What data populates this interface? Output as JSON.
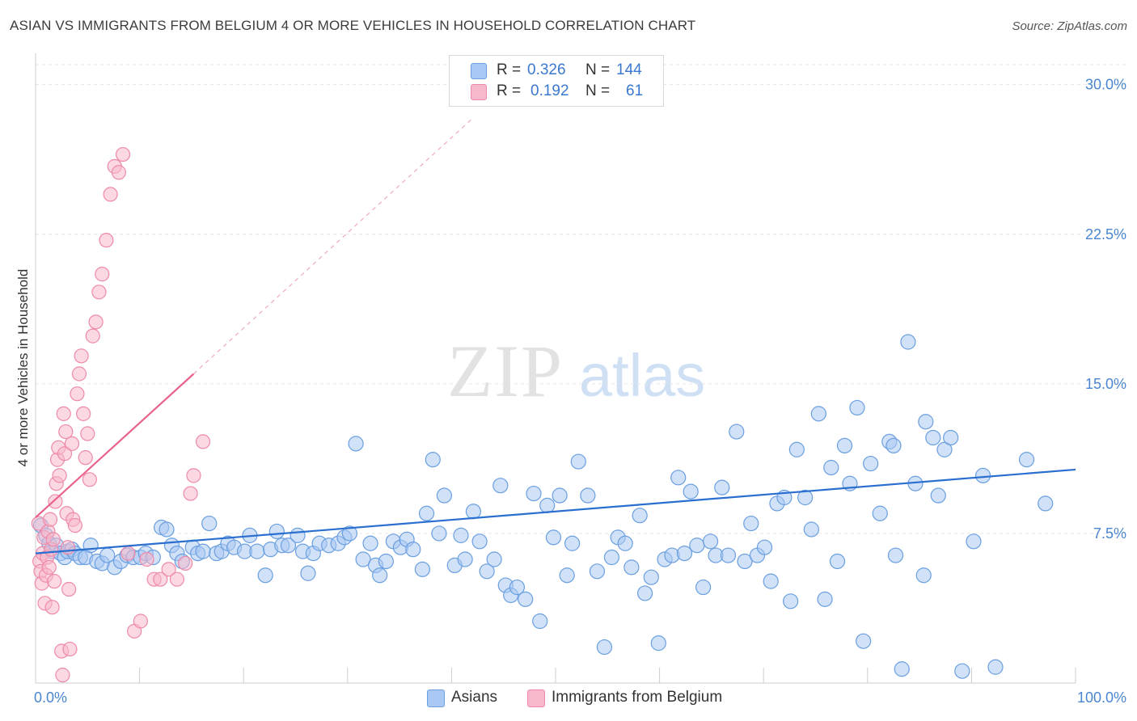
{
  "title": "ASIAN VS IMMIGRANTS FROM BELGIUM 4 OR MORE VEHICLES IN HOUSEHOLD CORRELATION CHART",
  "source": "Source: ZipAtlas.com",
  "watermark": {
    "zip": "ZIP",
    "atlas": "atlas"
  },
  "legend": {
    "r_label": "R =",
    "n_label": "N =",
    "asians": {
      "r": "0.326",
      "n": "144"
    },
    "belgium": {
      "r": "0.192",
      "n": "61"
    }
  },
  "bottom_legend": {
    "asians": "Asians",
    "belgium": "Immigrants from Belgium"
  },
  "colors": {
    "asian_fill": "#a9c8f3",
    "asian_stroke": "#6a9fe0",
    "asian_line": "#2a6fd0",
    "belgium_fill": "#f7b8cb",
    "belgium_stroke": "#ee8aa8",
    "belgium_line": "#e8628a",
    "grid": "#e6e6e6",
    "tick_text": "#4a86d0"
  },
  "chart_data": {
    "type": "scatter",
    "title": "ASIAN VS IMMIGRANTS FROM BELGIUM 4 OR MORE VEHICLES IN HOUSEHOLD CORRELATION CHART",
    "xlabel": "",
    "ylabel": "4 or more Vehicles in Household",
    "xlim": [
      0,
      100
    ],
    "ylim": [
      0,
      31
    ],
    "x_tick_labels": [
      "0.0%",
      "100.0%"
    ],
    "y_ticks": [
      7.5,
      15.0,
      22.5,
      30.0
    ],
    "y_tick_labels": [
      "7.5%",
      "15.0%",
      "22.5%",
      "30.0%"
    ],
    "grid": true,
    "series": [
      {
        "name": "Asians",
        "r": 0.326,
        "n": 144,
        "trend": {
          "x0": 0,
          "y0": 6.5,
          "x1": 100,
          "y1": 10.7
        },
        "points": [
          [
            0.5,
            7.9
          ],
          [
            1,
            7.4
          ],
          [
            1.3,
            7.0
          ],
          [
            1.6,
            6.6
          ],
          [
            2,
            6.9
          ],
          [
            2.4,
            6.5
          ],
          [
            2.8,
            6.3
          ],
          [
            3.1,
            6.6
          ],
          [
            3.5,
            6.7
          ],
          [
            3.8,
            6.5
          ],
          [
            4.3,
            6.3
          ],
          [
            4.8,
            6.3
          ],
          [
            5.3,
            6.9
          ],
          [
            5.9,
            6.1
          ],
          [
            6.4,
            6.0
          ],
          [
            6.9,
            6.4
          ],
          [
            7.6,
            5.8
          ],
          [
            8.2,
            6.1
          ],
          [
            8.8,
            6.4
          ],
          [
            9.4,
            6.3
          ],
          [
            10.1,
            6.3
          ],
          [
            10.6,
            6.5
          ],
          [
            11.3,
            6.3
          ],
          [
            12.1,
            7.8
          ],
          [
            12.6,
            7.7
          ],
          [
            13.1,
            6.9
          ],
          [
            13.6,
            6.5
          ],
          [
            14.1,
            6.1
          ],
          [
            15.1,
            6.8
          ],
          [
            15.6,
            6.5
          ],
          [
            16.1,
            6.6
          ],
          [
            16.7,
            8.0
          ],
          [
            17.4,
            6.5
          ],
          [
            17.9,
            6.6
          ],
          [
            18.5,
            7.0
          ],
          [
            19.1,
            6.8
          ],
          [
            20.1,
            6.6
          ],
          [
            20.6,
            7.4
          ],
          [
            21.3,
            6.6
          ],
          [
            22.1,
            5.4
          ],
          [
            22.6,
            6.7
          ],
          [
            23.2,
            7.6
          ],
          [
            23.7,
            6.9
          ],
          [
            24.3,
            6.9
          ],
          [
            25.2,
            7.4
          ],
          [
            25.7,
            6.6
          ],
          [
            26.2,
            5.5
          ],
          [
            26.7,
            6.5
          ],
          [
            27.3,
            7.0
          ],
          [
            28.2,
            6.9
          ],
          [
            29.1,
            7.0
          ],
          [
            29.7,
            7.3
          ],
          [
            30.2,
            7.5
          ],
          [
            30.8,
            12.0
          ],
          [
            31.5,
            6.2
          ],
          [
            32.2,
            7.0
          ],
          [
            32.7,
            5.9
          ],
          [
            33.1,
            5.4
          ],
          [
            33.7,
            6.1
          ],
          [
            34.4,
            7.1
          ],
          [
            35.1,
            6.8
          ],
          [
            35.7,
            7.2
          ],
          [
            36.3,
            6.7
          ],
          [
            37.2,
            5.7
          ],
          [
            37.6,
            8.5
          ],
          [
            38.2,
            11.2
          ],
          [
            38.8,
            7.5
          ],
          [
            39.3,
            9.4
          ],
          [
            40.3,
            5.9
          ],
          [
            40.9,
            7.4
          ],
          [
            41.3,
            6.2
          ],
          [
            42.1,
            8.6
          ],
          [
            42.7,
            7.1
          ],
          [
            43.4,
            5.6
          ],
          [
            44.1,
            6.2
          ],
          [
            44.7,
            9.9
          ],
          [
            45.2,
            4.9
          ],
          [
            45.7,
            4.4
          ],
          [
            46.3,
            4.8
          ],
          [
            47.1,
            4.2
          ],
          [
            47.9,
            9.5
          ],
          [
            48.5,
            3.1
          ],
          [
            49.2,
            8.9
          ],
          [
            49.8,
            7.3
          ],
          [
            50.4,
            9.4
          ],
          [
            51.1,
            5.4
          ],
          [
            51.6,
            7.0
          ],
          [
            52.2,
            11.1
          ],
          [
            53.1,
            9.4
          ],
          [
            54.0,
            5.6
          ],
          [
            54.7,
            1.8
          ],
          [
            55.4,
            6.3
          ],
          [
            56.0,
            7.3
          ],
          [
            56.7,
            7.0
          ],
          [
            57.3,
            5.8
          ],
          [
            58.1,
            8.4
          ],
          [
            58.6,
            4.5
          ],
          [
            59.2,
            5.3
          ],
          [
            59.9,
            2.0
          ],
          [
            60.5,
            6.2
          ],
          [
            61.2,
            6.4
          ],
          [
            61.8,
            10.3
          ],
          [
            62.4,
            6.5
          ],
          [
            63.0,
            9.6
          ],
          [
            63.6,
            6.9
          ],
          [
            64.2,
            4.8
          ],
          [
            64.9,
            7.1
          ],
          [
            65.4,
            6.4
          ],
          [
            66.0,
            9.8
          ],
          [
            66.6,
            6.4
          ],
          [
            67.4,
            12.6
          ],
          [
            68.2,
            6.1
          ],
          [
            68.8,
            8.0
          ],
          [
            69.4,
            6.4
          ],
          [
            70.1,
            6.8
          ],
          [
            70.7,
            5.1
          ],
          [
            71.3,
            9.0
          ],
          [
            72.0,
            9.3
          ],
          [
            72.6,
            4.1
          ],
          [
            73.2,
            11.7
          ],
          [
            74.0,
            9.3
          ],
          [
            74.6,
            7.7
          ],
          [
            75.3,
            13.5
          ],
          [
            75.9,
            4.2
          ],
          [
            76.5,
            10.8
          ],
          [
            77.1,
            6.1
          ],
          [
            77.8,
            11.9
          ],
          [
            78.3,
            10.0
          ],
          [
            79.0,
            13.8
          ],
          [
            79.6,
            2.1
          ],
          [
            80.3,
            11.0
          ],
          [
            81.2,
            8.5
          ],
          [
            82.1,
            12.1
          ],
          [
            82.7,
            6.4
          ],
          [
            83.3,
            0.7
          ],
          [
            83.9,
            17.1
          ],
          [
            84.6,
            10.0
          ],
          [
            85.4,
            5.4
          ],
          [
            86.3,
            12.3
          ],
          [
            86.8,
            9.4
          ],
          [
            87.4,
            11.7
          ],
          [
            88.0,
            12.3
          ],
          [
            89.1,
            0.6
          ],
          [
            90.2,
            7.1
          ],
          [
            91.1,
            10.4
          ],
          [
            92.3,
            0.8
          ],
          [
            95.3,
            11.2
          ],
          [
            97.1,
            9.0
          ],
          [
            85.6,
            13.1
          ],
          [
            82.5,
            11.9
          ]
        ]
      },
      {
        "name": "Immigrants from Belgium",
        "r": 0.192,
        "n": 61,
        "trend": {
          "x0": 0,
          "y0": 8.3,
          "x1": 15.2,
          "y1": 15.5
        },
        "trend_dashed": {
          "x0": 15.2,
          "y0": 15.5,
          "x1": 42,
          "y1": 28.3
        },
        "points": [
          [
            0.3,
            8.0
          ],
          [
            0.4,
            6.1
          ],
          [
            0.5,
            5.6
          ],
          [
            0.6,
            5.0
          ],
          [
            0.7,
            6.5
          ],
          [
            0.8,
            7.3
          ],
          [
            0.9,
            4.0
          ],
          [
            1.0,
            5.4
          ],
          [
            1.1,
            6.3
          ],
          [
            1.2,
            7.6
          ],
          [
            1.3,
            5.8
          ],
          [
            1.4,
            8.2
          ],
          [
            1.5,
            6.7
          ],
          [
            1.6,
            3.8
          ],
          [
            1.7,
            7.2
          ],
          [
            1.8,
            5.1
          ],
          [
            1.9,
            9.1
          ],
          [
            2.0,
            10.0
          ],
          [
            2.1,
            11.2
          ],
          [
            2.2,
            11.8
          ],
          [
            2.3,
            10.4
          ],
          [
            2.5,
            1.6
          ],
          [
            2.6,
            0.4
          ],
          [
            2.7,
            13.5
          ],
          [
            2.8,
            11.5
          ],
          [
            2.9,
            12.6
          ],
          [
            3.0,
            8.5
          ],
          [
            3.1,
            6.8
          ],
          [
            3.2,
            4.7
          ],
          [
            3.3,
            1.7
          ],
          [
            3.5,
            12.0
          ],
          [
            3.6,
            8.2
          ],
          [
            3.8,
            7.9
          ],
          [
            4.0,
            14.5
          ],
          [
            4.2,
            15.5
          ],
          [
            4.4,
            16.4
          ],
          [
            4.6,
            13.5
          ],
          [
            4.8,
            11.3
          ],
          [
            5.0,
            12.5
          ],
          [
            5.2,
            10.2
          ],
          [
            5.5,
            17.4
          ],
          [
            5.8,
            18.1
          ],
          [
            6.1,
            19.6
          ],
          [
            6.4,
            20.5
          ],
          [
            6.8,
            22.2
          ],
          [
            7.2,
            24.5
          ],
          [
            7.6,
            25.9
          ],
          [
            8.0,
            25.6
          ],
          [
            8.4,
            26.5
          ],
          [
            8.9,
            6.5
          ],
          [
            9.5,
            2.6
          ],
          [
            10.1,
            3.1
          ],
          [
            10.7,
            6.2
          ],
          [
            11.4,
            5.2
          ],
          [
            12.0,
            5.2
          ],
          [
            12.8,
            5.7
          ],
          [
            13.6,
            5.2
          ],
          [
            14.4,
            6.0
          ],
          [
            14.9,
            9.5
          ],
          [
            15.2,
            10.4
          ],
          [
            16.1,
            12.1
          ]
        ]
      }
    ]
  }
}
